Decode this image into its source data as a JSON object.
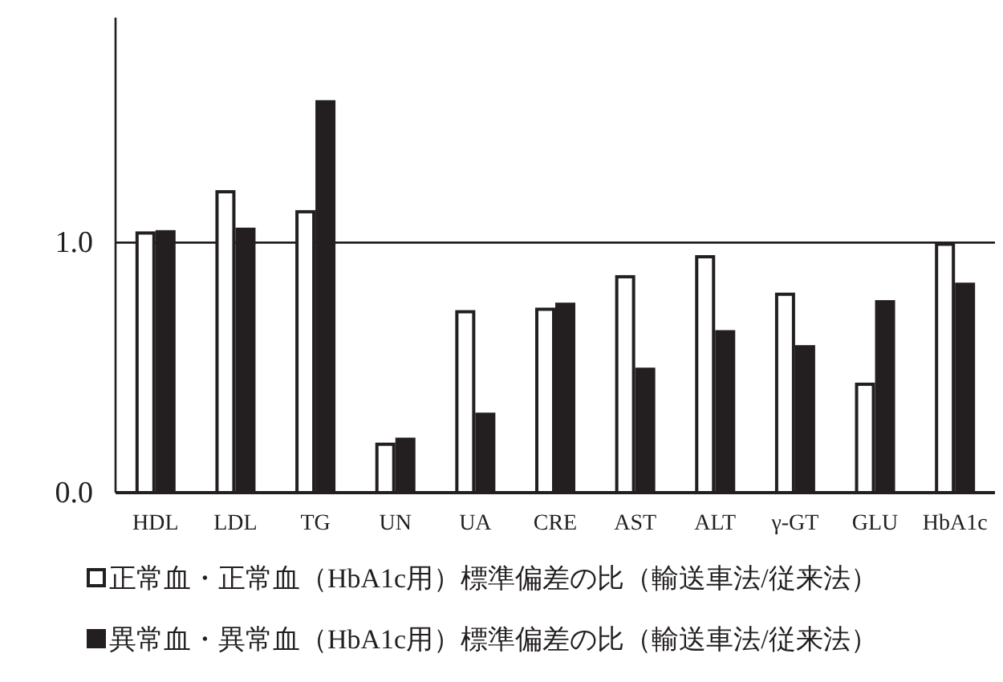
{
  "chart_data": {
    "type": "bar",
    "categories": [
      "HDL",
      "LDL",
      "TG",
      "UN",
      "UA",
      "CRE",
      "AST",
      "ALT",
      "γ-GT",
      "GLU",
      "HbA1c"
    ],
    "series": [
      {
        "name": "正常血・正常血（HbA1c用）標準偏差の比（輸送車法/従来法）",
        "color": "#ffffff",
        "values": [
          1.045,
          1.21,
          1.13,
          0.2,
          0.73,
          0.74,
          0.87,
          0.95,
          0.8,
          0.44,
          1.0
        ]
      },
      {
        "name": "異常血・異常血（HbA1c用）標準偏差の比（輸送車法/従来法）",
        "color": "#231f20",
        "values": [
          1.05,
          1.06,
          1.57,
          0.22,
          0.32,
          0.76,
          0.5,
          0.65,
          0.59,
          0.77,
          0.84
        ]
      }
    ],
    "ylim": [
      0,
      1.9
    ],
    "yticks": [
      {
        "value": 0,
        "label": "0.0"
      },
      {
        "value": 1,
        "label": "1.0"
      }
    ],
    "ref_lines": [
      {
        "axis": "y",
        "value": 1
      }
    ],
    "legend": "bottom"
  }
}
